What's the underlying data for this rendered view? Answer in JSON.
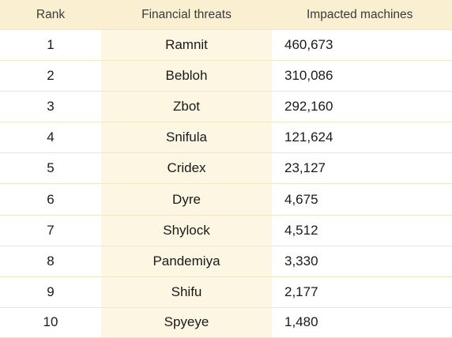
{
  "chart_data": {
    "type": "table",
    "columns": [
      "Rank",
      "Financial threats",
      "Impacted machines"
    ],
    "rows": [
      {
        "rank": "1",
        "name": "Ramnit",
        "count": "460,673"
      },
      {
        "rank": "2",
        "name": "Bebloh",
        "count": "310,086"
      },
      {
        "rank": "3",
        "name": "Zbot",
        "count": "292,160"
      },
      {
        "rank": "4",
        "name": "Snifula",
        "count": "121,624"
      },
      {
        "rank": "5",
        "name": "Cridex",
        "count": "23,127"
      },
      {
        "rank": "6",
        "name": "Dyre",
        "count": "4,675"
      },
      {
        "rank": "7",
        "name": "Shylock",
        "count": "4,512"
      },
      {
        "rank": "8",
        "name": "Pandemiya",
        "count": "3,330"
      },
      {
        "rank": "9",
        "name": "Shifu",
        "count": "2,177"
      },
      {
        "rank": "10",
        "name": "Spyeye",
        "count": "1,480"
      }
    ]
  },
  "colors": {
    "header_bg": "#faefd0",
    "highlight_column_bg": "#fdf6e3",
    "row_border": "#efe6c8"
  }
}
